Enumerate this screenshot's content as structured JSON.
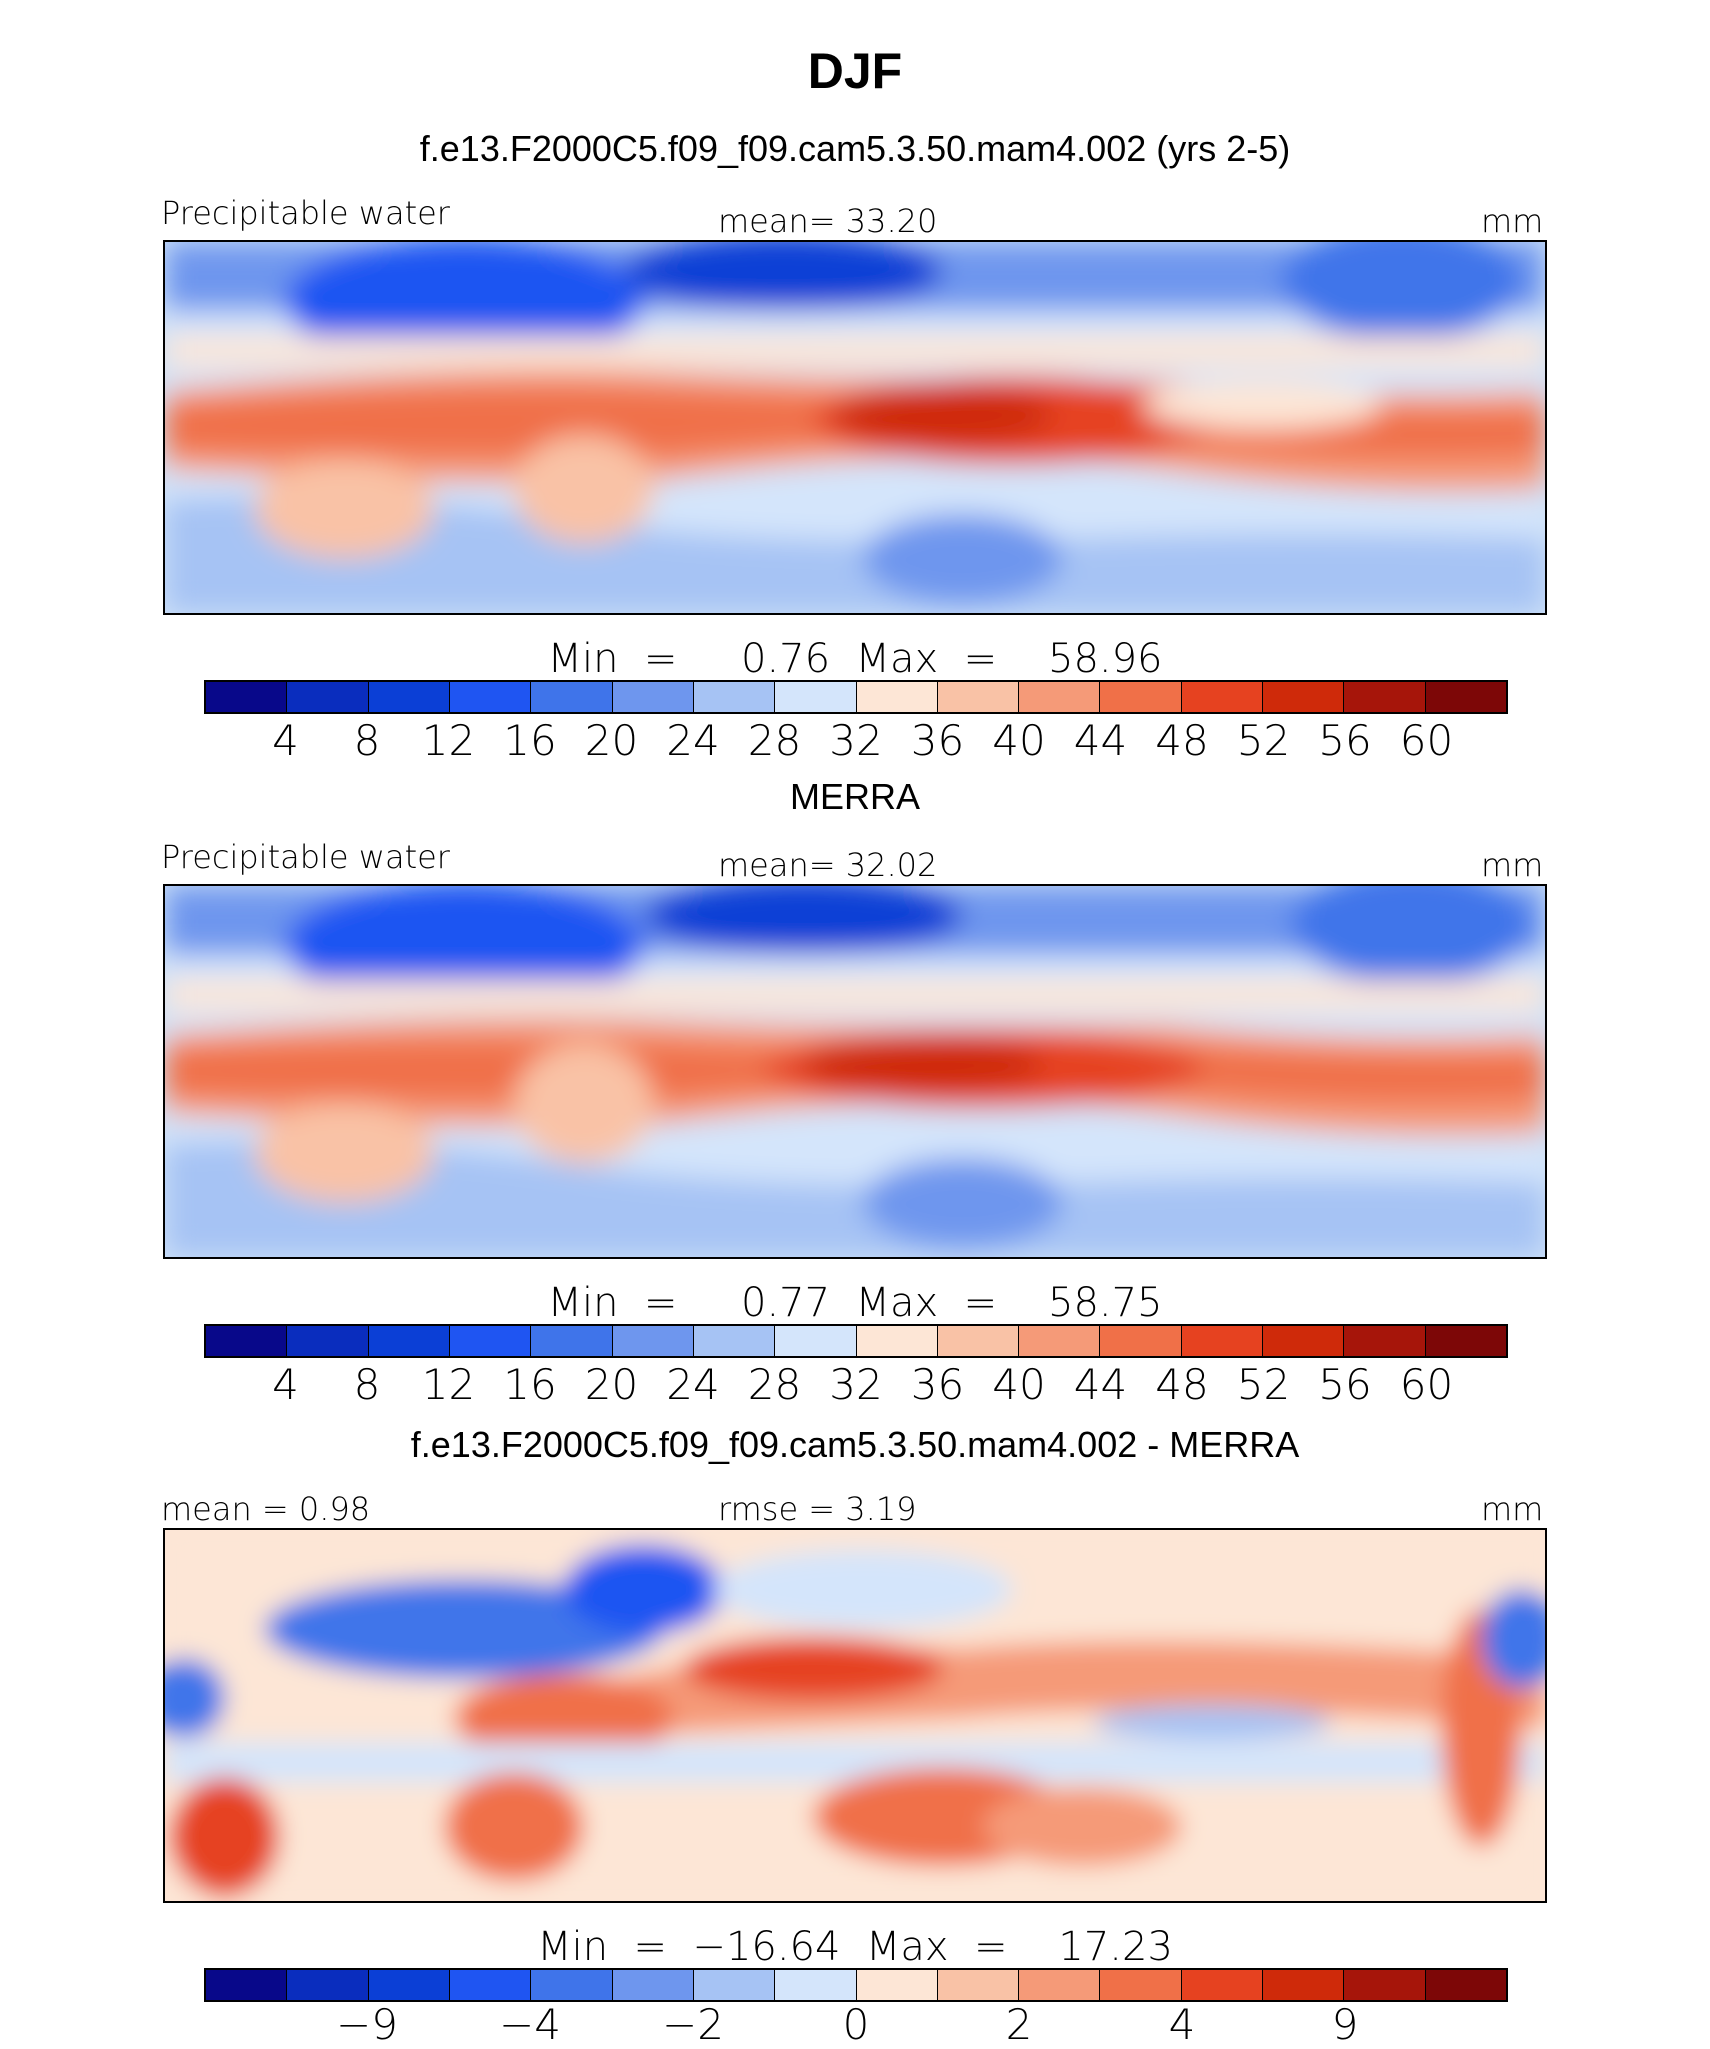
{
  "title": "DJF",
  "palette": [
    "#08088a",
    "#0a2dbe",
    "#0b3fd6",
    "#1f55f2",
    "#3f74ea",
    "#6e96ee",
    "#a6c3f4",
    "#d4e5fb",
    "#fde6d6",
    "#f9c2a6",
    "#f59a78",
    "#f07048",
    "#e64220",
    "#cf2a0a",
    "#a6150a",
    "#7d0707"
  ],
  "panels": [
    {
      "subtitle": "f.e13.F2000C5.f09_f09.cam5.3.50.mam4.002 (yrs 2-5)",
      "left_label": "Precipitable water",
      "mid_label": "mean=   33.20",
      "right_label": "mm",
      "minmax": "Min  =     0.76  Max  =    58.96",
      "ticks": [
        "4",
        "8",
        "12",
        "16",
        "20",
        "24",
        "28",
        "32",
        "36",
        "40",
        "44",
        "48",
        "52",
        "56",
        "60"
      ],
      "kind": "field"
    },
    {
      "subtitle": "MERRA",
      "left_label": "Precipitable water",
      "mid_label": "mean=   32.02",
      "right_label": "mm",
      "minmax": "Min  =     0.77  Max  =    58.75",
      "ticks": [
        "4",
        "8",
        "12",
        "16",
        "20",
        "24",
        "28",
        "32",
        "36",
        "40",
        "44",
        "48",
        "52",
        "56",
        "60"
      ],
      "kind": "field"
    },
    {
      "subtitle": "f.e13.F2000C5.f09_f09.cam5.3.50.mam4.002 - MERRA",
      "left_label": "mean  =    0.98",
      "mid_label": "rmse  =    3.19",
      "right_label": "mm",
      "minmax": "Min  =  −16.64  Max  =    17.23",
      "ticks": [
        "−9",
        "−4",
        "−2",
        "0",
        "2",
        "4",
        "9"
      ],
      "kind": "diff"
    }
  ]
}
